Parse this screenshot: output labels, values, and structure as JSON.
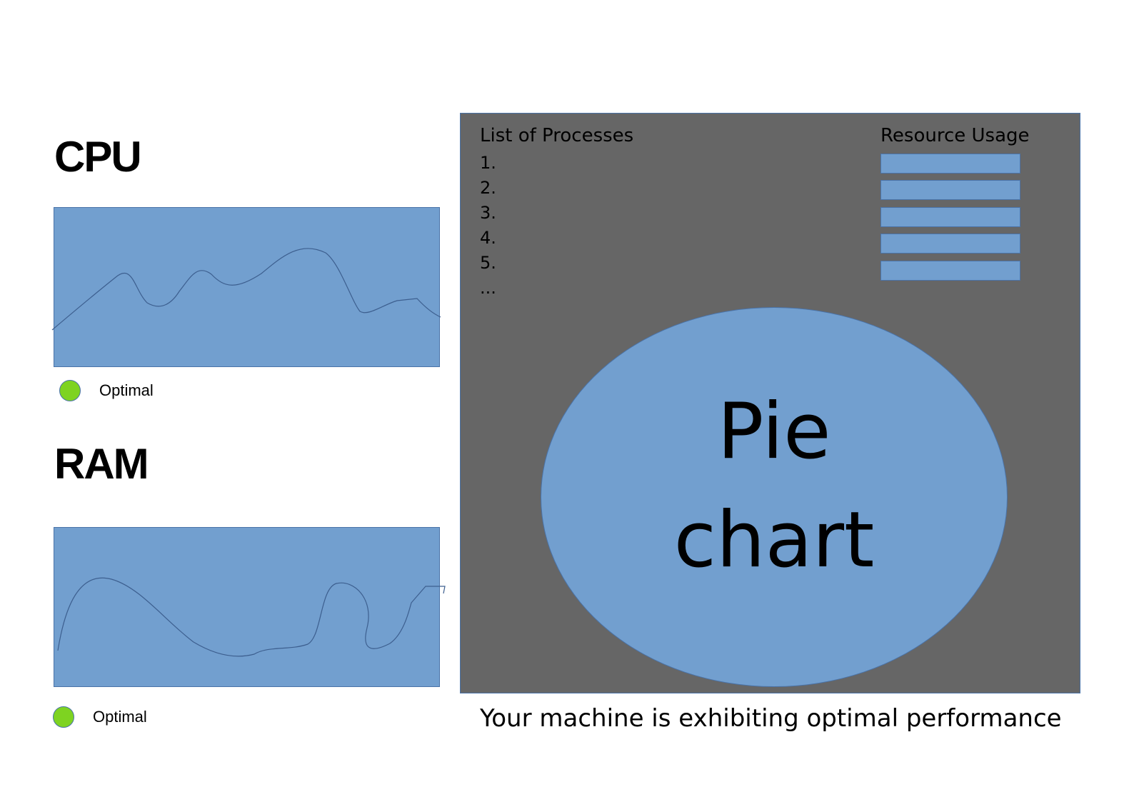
{
  "cpu": {
    "title": "CPU",
    "status_label": "Optimal",
    "status_color": "#7ed321"
  },
  "ram": {
    "title": "RAM",
    "status_label": "Optimal",
    "status_color": "#7ed321"
  },
  "processes": {
    "title": "List of Processes",
    "items": [
      "1.",
      "2.",
      "3.",
      "4.",
      "5.",
      "..."
    ]
  },
  "resource_usage": {
    "title": "Resource Usage",
    "bar_count": 5
  },
  "pie_chart": {
    "line1": "Pie",
    "line2": "chart"
  },
  "message": "Your machine is exhibiting optimal performance",
  "colors": {
    "panel": "#666666",
    "graph_fill": "#729fcf",
    "outline": "#4a73a8",
    "status_ok": "#7ed321"
  },
  "icons": {
    "cpu_status": "status-dot-icon",
    "ram_status": "status-dot-icon"
  }
}
